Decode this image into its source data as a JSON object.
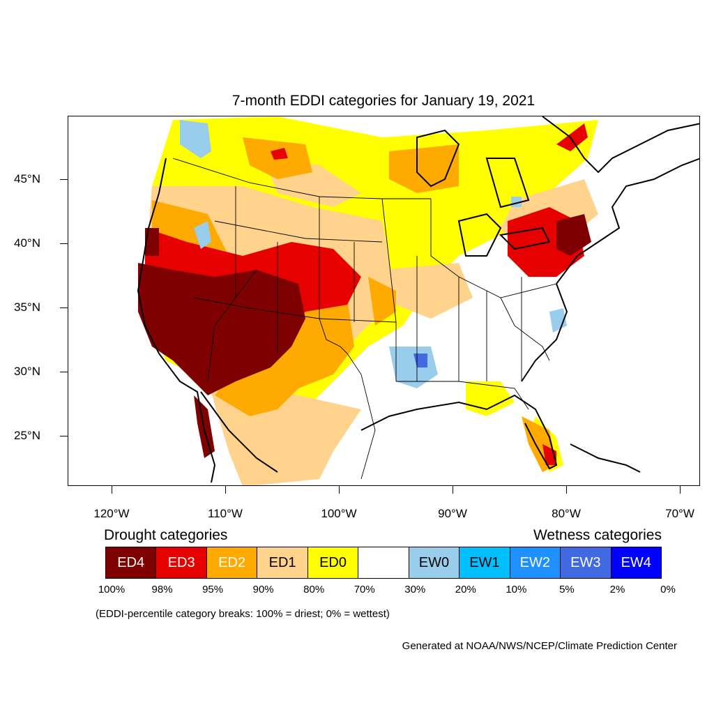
{
  "title": "7-month EDDI categories for January 19, 2021",
  "colors": {
    "ED4": "#7f0000",
    "ED3": "#e60000",
    "ED2": "#ffaa00",
    "ED1": "#ffd38c",
    "ED0": "#ffff00",
    "neutral": "#ffffff",
    "EW0": "#99cdec",
    "EW1": "#00bfff",
    "EW2": "#1e90ff",
    "EW3": "#4169e1",
    "EW4": "#0000ff"
  },
  "lat_labels": [
    "45°N",
    "40°N",
    "35°N",
    "30°N",
    "25°N"
  ],
  "lon_labels": [
    "120°W",
    "110°W",
    "100°W",
    "90°W",
    "80°W",
    "70°W"
  ],
  "legend": {
    "drought_label": "Drought categories",
    "wetness_label": "Wetness categories",
    "categories": [
      {
        "label": "ED4",
        "color": "#7f0000",
        "text_color": "#ffffff"
      },
      {
        "label": "ED3",
        "color": "#e60000",
        "text_color": "#ffffff"
      },
      {
        "label": "ED2",
        "color": "#ffaa00",
        "text_color": "#ffffff"
      },
      {
        "label": "ED1",
        "color": "#ffd38c",
        "text_color": "#000000"
      },
      {
        "label": "ED0",
        "color": "#ffff00",
        "text_color": "#000000"
      },
      {
        "label": "",
        "color": "#ffffff",
        "text_color": "#000000"
      },
      {
        "label": "EW0",
        "color": "#99cdec",
        "text_color": "#000000"
      },
      {
        "label": "EW1",
        "color": "#00bfff",
        "text_color": "#000000"
      },
      {
        "label": "EW2",
        "color": "#1e90ff",
        "text_color": "#ffffff"
      },
      {
        "label": "EW3",
        "color": "#4169e1",
        "text_color": "#ffffff"
      },
      {
        "label": "EW4",
        "color": "#0000ff",
        "text_color": "#ffffff"
      }
    ],
    "percentiles": [
      "100%",
      "98%",
      "95%",
      "90%",
      "80%",
      "70%",
      "30%",
      "20%",
      "10%",
      "5%",
      "2%",
      "0%"
    ]
  },
  "note": "(EDDI-percentile category breaks: 100% = driest; 0% = wettest)",
  "credit": "Generated at NOAA/NWS/NCEP/Climate Prediction Center"
}
